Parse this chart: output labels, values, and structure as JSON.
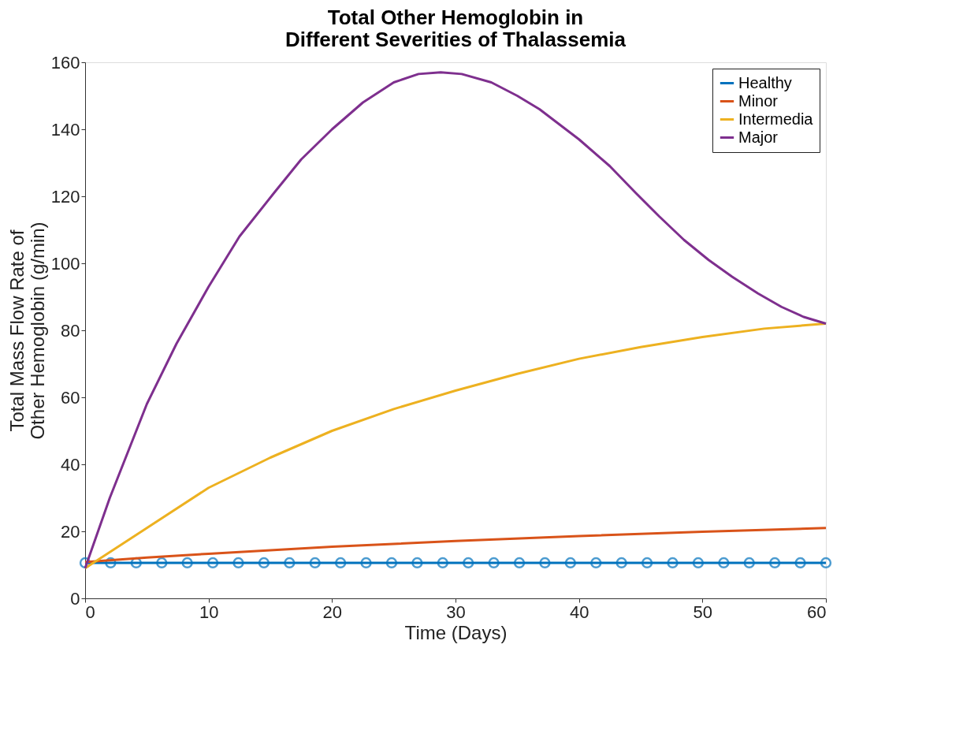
{
  "chart_data": {
    "type": "line",
    "title": "Total Other Hemoglobin in\nDifferent Severities of Thalassemia",
    "xlabel": "Time (Days)",
    "ylabel": "Total Mass Flow Rate of\nOther Hemoglobin (g/min)",
    "xlim": [
      0,
      60
    ],
    "xticks": [
      0,
      10,
      20,
      30,
      40,
      50,
      60
    ],
    "ylim": [
      0,
      160
    ],
    "yticks": [
      0,
      20,
      40,
      60,
      80,
      100,
      120,
      140,
      160
    ],
    "grid": false,
    "legend": "top right",
    "series": [
      {
        "name": "Healthy",
        "color": "#0072bd",
        "marker": "circle",
        "x": [
          0,
          2.069,
          4.138,
          6.207,
          8.276,
          10.345,
          12.414,
          14.483,
          16.552,
          18.621,
          20.69,
          22.759,
          24.828,
          26.897,
          28.966,
          31.034,
          33.103,
          35.172,
          37.241,
          39.31,
          41.379,
          43.448,
          45.517,
          47.586,
          49.655,
          51.724,
          53.793,
          55.862,
          57.931,
          60
        ],
        "values": [
          10.6,
          10.6,
          10.6,
          10.6,
          10.6,
          10.6,
          10.6,
          10.6,
          10.6,
          10.6,
          10.6,
          10.6,
          10.6,
          10.6,
          10.6,
          10.6,
          10.6,
          10.6,
          10.6,
          10.6,
          10.6,
          10.6,
          10.6,
          10.6,
          10.6,
          10.6,
          10.6,
          10.6,
          10.6,
          10.6
        ]
      },
      {
        "name": "Minor",
        "color": "#d95319",
        "marker": "none",
        "x": [
          0,
          5,
          10,
          20,
          30,
          40,
          50,
          60
        ],
        "values": [
          10.8,
          12.2,
          13.3,
          15.4,
          17.1,
          18.6,
          19.9,
          21
        ]
      },
      {
        "name": "Intermedia",
        "color": "#edb120",
        "marker": "none",
        "x": [
          0,
          5,
          10,
          15,
          20,
          25,
          30,
          35,
          40,
          45,
          50,
          55,
          60
        ],
        "values": [
          9,
          21,
          33,
          42,
          50,
          56.5,
          62,
          67,
          71.5,
          75,
          78,
          80.5,
          82
        ]
      },
      {
        "name": "Major",
        "color": "#7e2f8e",
        "marker": "none",
        "x": [
          0,
          2,
          5,
          7.4,
          10,
          12.5,
          15.3,
          17.5,
          20,
          22.5,
          25,
          27,
          28.8,
          30.5,
          32.9,
          35,
          36.8,
          40,
          42.5,
          44.6,
          46.5,
          48.5,
          50.5,
          52.4,
          54.5,
          56.4,
          58.2,
          60
        ],
        "values": [
          9,
          30,
          58,
          76,
          93,
          108,
          121,
          131,
          140,
          148,
          154,
          156.5,
          157,
          156.5,
          154,
          150,
          146,
          137,
          129,
          121,
          114,
          107,
          101,
          96,
          91,
          87,
          84,
          82
        ]
      }
    ]
  }
}
